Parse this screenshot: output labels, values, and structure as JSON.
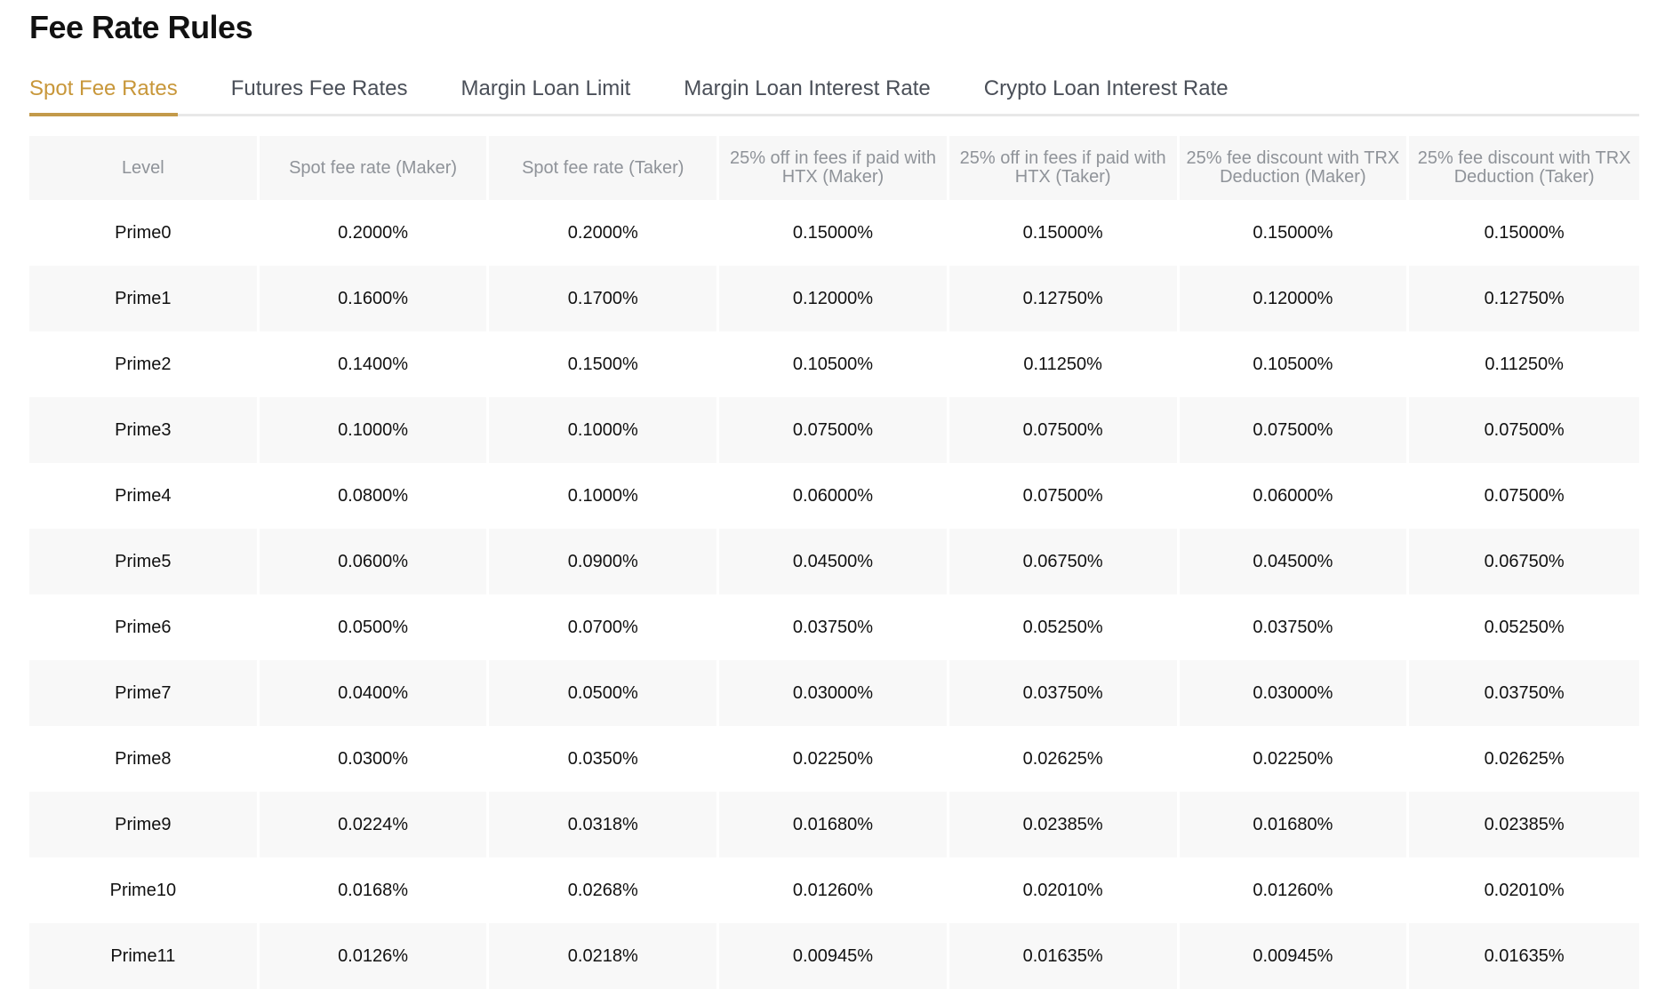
{
  "page": {
    "title": "Fee Rate Rules"
  },
  "tabs": [
    {
      "label": "Spot Fee Rates",
      "active": true
    },
    {
      "label": "Futures Fee Rates",
      "active": false
    },
    {
      "label": "Margin Loan Limit",
      "active": false
    },
    {
      "label": "Margin Loan Interest Rate",
      "active": false
    },
    {
      "label": "Crypto Loan Interest Rate",
      "active": false
    }
  ],
  "colors": {
    "accent": "#c8973a",
    "header_bg": "#f7f7f7",
    "stripe_bg": "#f8f8f8"
  },
  "table": {
    "headers": [
      "Level",
      "Spot fee rate (Maker)",
      "Spot fee rate (Taker)",
      "25% off in fees if paid with HTX (Maker)",
      "25% off in fees if paid with HTX (Taker)",
      "25% fee discount with TRX Deduction (Maker)",
      "25% fee discount with TRX Deduction (Taker)"
    ],
    "rows": [
      [
        "Prime0",
        "0.2000%",
        "0.2000%",
        "0.15000%",
        "0.15000%",
        "0.15000%",
        "0.15000%"
      ],
      [
        "Prime1",
        "0.1600%",
        "0.1700%",
        "0.12000%",
        "0.12750%",
        "0.12000%",
        "0.12750%"
      ],
      [
        "Prime2",
        "0.1400%",
        "0.1500%",
        "0.10500%",
        "0.11250%",
        "0.10500%",
        "0.11250%"
      ],
      [
        "Prime3",
        "0.1000%",
        "0.1000%",
        "0.07500%",
        "0.07500%",
        "0.07500%",
        "0.07500%"
      ],
      [
        "Prime4",
        "0.0800%",
        "0.1000%",
        "0.06000%",
        "0.07500%",
        "0.06000%",
        "0.07500%"
      ],
      [
        "Prime5",
        "0.0600%",
        "0.0900%",
        "0.04500%",
        "0.06750%",
        "0.04500%",
        "0.06750%"
      ],
      [
        "Prime6",
        "0.0500%",
        "0.0700%",
        "0.03750%",
        "0.05250%",
        "0.03750%",
        "0.05250%"
      ],
      [
        "Prime7",
        "0.0400%",
        "0.0500%",
        "0.03000%",
        "0.03750%",
        "0.03000%",
        "0.03750%"
      ],
      [
        "Prime8",
        "0.0300%",
        "0.0350%",
        "0.02250%",
        "0.02625%",
        "0.02250%",
        "0.02625%"
      ],
      [
        "Prime9",
        "0.0224%",
        "0.0318%",
        "0.01680%",
        "0.02385%",
        "0.01680%",
        "0.02385%"
      ],
      [
        "Prime10",
        "0.0168%",
        "0.0268%",
        "0.01260%",
        "0.02010%",
        "0.01260%",
        "0.02010%"
      ],
      [
        "Prime11",
        "0.0126%",
        "0.0218%",
        "0.00945%",
        "0.01635%",
        "0.00945%",
        "0.01635%"
      ]
    ]
  }
}
